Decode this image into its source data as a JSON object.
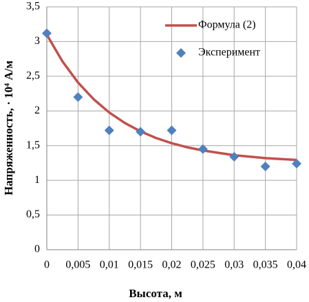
{
  "chart_data": {
    "type": "line",
    "xlabel": "Высота, м",
    "ylabel": "Напряженность, · 10⁴ А/м",
    "xlim": [
      0,
      0.04
    ],
    "ylim": [
      0,
      3.5
    ],
    "xticks": [
      0,
      {
        "value": 0.005,
        "label": "0,005"
      },
      {
        "value": 0.01,
        "label": "0,01"
      },
      {
        "value": 0.015,
        "label": "0,015"
      },
      {
        "value": 0.02,
        "label": "0,02"
      },
      {
        "value": 0.025,
        "label": "0,025"
      },
      {
        "value": 0.03,
        "label": "0,03"
      },
      {
        "value": 0.035,
        "label": "0,035"
      },
      {
        "value": 0.04,
        "label": "0,04"
      }
    ],
    "yticks": [
      0,
      {
        "value": 0.5,
        "label": "0,5"
      },
      1,
      {
        "value": 1.5,
        "label": "1,5"
      },
      2,
      {
        "value": 2.5,
        "label": "2,5"
      },
      3,
      {
        "value": 3.5,
        "label": "3,5"
      }
    ],
    "grid": true,
    "legend": "upper right",
    "series": [
      {
        "name": "Формула (2)",
        "type": "line",
        "color": "#c0504d",
        "x": [
          0,
          0.0025,
          0.005,
          0.0075,
          0.01,
          0.0125,
          0.015,
          0.0175,
          0.02,
          0.0225,
          0.025,
          0.03,
          0.035,
          0.04
        ],
        "values": [
          3.1,
          2.715,
          2.41,
          2.169,
          1.977,
          1.826,
          1.706,
          1.61,
          1.535,
          1.476,
          1.43,
          1.362,
          1.32,
          1.294
        ]
      },
      {
        "name": "Эксперимент",
        "type": "scatter",
        "color": "#4f81bd",
        "x": [
          0,
          0.005,
          0.01,
          0.015,
          0.02,
          0.025,
          0.03,
          0.035,
          0.04
        ],
        "values": [
          3.12,
          2.2,
          1.72,
          1.7,
          1.72,
          1.45,
          1.34,
          1.2,
          1.24
        ]
      }
    ]
  }
}
